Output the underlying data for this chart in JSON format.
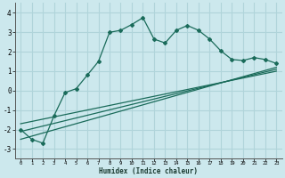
{
  "xlabel": "Humidex (Indice chaleur)",
  "background_color": "#cce8ed",
  "grid_color": "#b0d4da",
  "line_color": "#1a6b5a",
  "xlim": [
    -0.5,
    23.5
  ],
  "ylim": [
    -3.5,
    4.5
  ],
  "yticks": [
    -3,
    -2,
    -1,
    0,
    1,
    2,
    3,
    4
  ],
  "xticks": [
    0,
    1,
    2,
    3,
    4,
    5,
    6,
    7,
    8,
    9,
    10,
    11,
    12,
    13,
    14,
    15,
    16,
    17,
    18,
    19,
    20,
    21,
    22,
    23
  ],
  "main_x": [
    0,
    1,
    2,
    3,
    4,
    5,
    6,
    7,
    8,
    9,
    10,
    11,
    12,
    13,
    14,
    15,
    16,
    17,
    18,
    19,
    20,
    21,
    22,
    23
  ],
  "main_y": [
    -2.0,
    -2.5,
    -2.7,
    -1.3,
    -0.1,
    0.1,
    0.8,
    1.5,
    3.0,
    3.1,
    3.4,
    3.75,
    2.65,
    2.45,
    3.1,
    3.35,
    3.1,
    2.65,
    2.05,
    1.6,
    1.55,
    1.7,
    1.6,
    1.4
  ],
  "line1_x": [
    0,
    23
  ],
  "line1_y": [
    -2.5,
    1.2
  ],
  "line2_x": [
    0,
    23
  ],
  "line2_y": [
    -2.1,
    1.1
  ],
  "line3_x": [
    0,
    23
  ],
  "line3_y": [
    -1.7,
    1.0
  ]
}
